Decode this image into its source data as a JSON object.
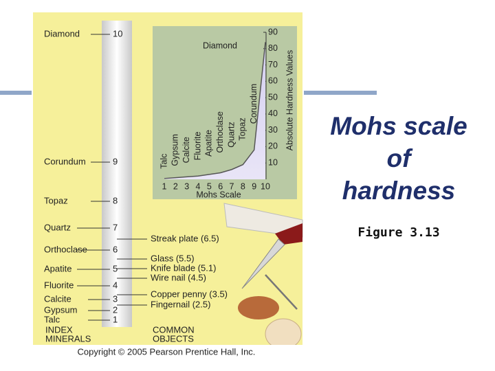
{
  "slide": {
    "title_lines": [
      "Mohs scale",
      "of",
      "hardness"
    ],
    "caption": "Figure 3.13"
  },
  "figure": {
    "index_minerals": [
      {
        "name": "Diamond",
        "hardness": 10
      },
      {
        "name": "Corundum",
        "hardness": 9
      },
      {
        "name": "Topaz",
        "hardness": 8
      },
      {
        "name": "Quartz",
        "hardness": 7
      },
      {
        "name": "Orthoclase",
        "hardness": 6
      },
      {
        "name": "Apatite",
        "hardness": 5
      },
      {
        "name": "Fluorite",
        "hardness": 4
      },
      {
        "name": "Calcite",
        "hardness": 3
      },
      {
        "name": "Gypsum",
        "hardness": 2
      },
      {
        "name": "Talc",
        "hardness": 1
      }
    ],
    "common_objects": [
      "Streak plate (6.5)",
      "Glass (5.5)",
      "Knife blade (5.1)",
      "Wire nail (4.5)",
      "Copper penny (3.5)",
      "Fingernail (2.5)"
    ],
    "index_label": [
      "INDEX",
      "MINERALS"
    ],
    "objects_label": [
      "COMMON",
      "OBJECTS"
    ],
    "copyright": "Copyright © 2005 Pearson Prentice Hall, Inc.",
    "inset_chart": {
      "type": "line",
      "x_label": "Mohs Scale",
      "y_label": "Absolute Hardness Values",
      "x": [
        1,
        2,
        3,
        4,
        5,
        6,
        7,
        8,
        9,
        10
      ],
      "point_labels": [
        "Talc",
        "Gypsum",
        "Calcite",
        "Fluorite",
        "Apatite",
        "Orthoclase",
        "Quartz",
        "Topaz",
        "Corundum",
        "Diamond"
      ],
      "values": [
        0.5,
        1,
        1.5,
        2,
        3,
        4,
        6,
        9,
        18,
        84
      ],
      "xlim": [
        1,
        10
      ],
      "xticks": [
        1,
        2,
        3,
        4,
        5,
        6,
        7,
        8,
        9,
        10
      ],
      "ylim": [
        0,
        90
      ],
      "yticks": [
        10,
        20,
        30,
        40,
        50,
        60,
        70,
        80,
        90
      ],
      "color": "#555555"
    }
  }
}
